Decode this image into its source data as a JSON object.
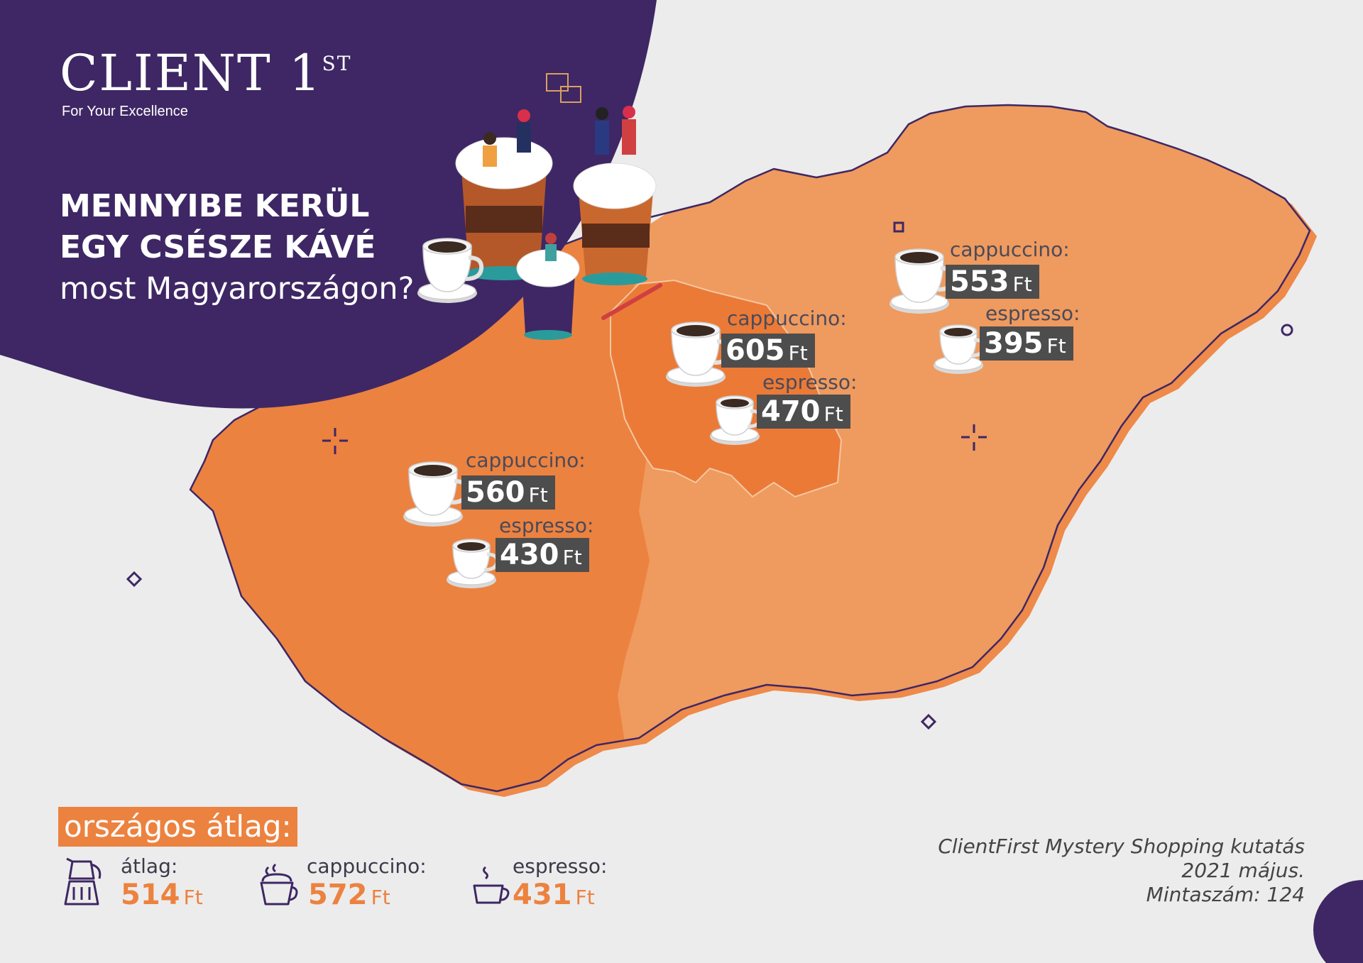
{
  "brand": {
    "name": "CLIENT 1",
    "name_sup": "ST",
    "tagline": "For Your Excellence"
  },
  "headline": {
    "line1": "MENNYIBE KERÜL",
    "line2": "EGY CSÉSZE KÁVÉ",
    "line3": "most Magyarországon?"
  },
  "regions": [
    {
      "id": "east",
      "cappuccino_label": "cappuccino:",
      "cappuccino_price": "553",
      "espresso_label": "espresso:",
      "espresso_price": "395",
      "unit": "Ft"
    },
    {
      "id": "budapest",
      "cappuccino_label": "cappuccino:",
      "cappuccino_price": "605",
      "espresso_label": "espresso:",
      "espresso_price": "470",
      "unit": "Ft"
    },
    {
      "id": "west",
      "cappuccino_label": "cappuccino:",
      "cappuccino_price": "560",
      "espresso_label": "espresso:",
      "espresso_price": "430",
      "unit": "Ft"
    }
  ],
  "national": {
    "title": "országos átlag:",
    "items": [
      {
        "label": "átlag:",
        "value": "514",
        "unit": "Ft",
        "icon": "moka-pot-icon"
      },
      {
        "label": "cappuccino:",
        "value": "572",
        "unit": "Ft",
        "icon": "cappuccino-cup-icon"
      },
      {
        "label": "espresso:",
        "value": "431",
        "unit": "Ft",
        "icon": "espresso-cup-icon"
      }
    ]
  },
  "source": {
    "line1": "ClientFirst Mystery Shopping kutatás",
    "line2": "2021 május.",
    "line3": "Mintaszám: 124"
  },
  "colors": {
    "purple": "#3e2764",
    "orange_dark": "#ec823f",
    "orange_light": "#ef9a5e",
    "orange_budapest": "#eb7a37",
    "price_box": "#4d4d4d"
  }
}
